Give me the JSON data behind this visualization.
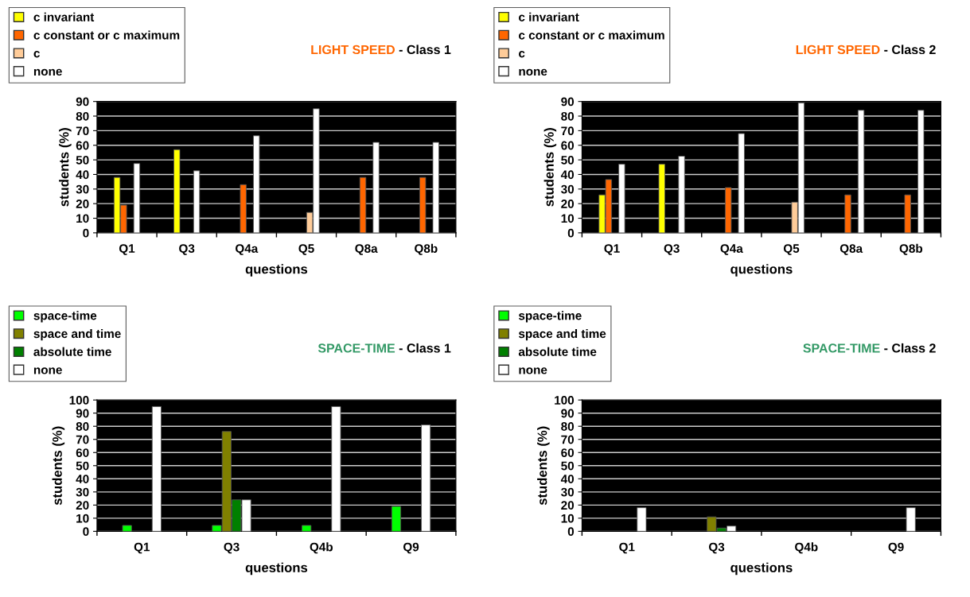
{
  "chart_data": [
    {
      "type": "bar",
      "title": "LIGHT SPEED",
      "subtitle": "- Class 1",
      "xlabel": "questions",
      "ylabel": "students (%)",
      "categories": [
        "Q1",
        "Q3",
        "Q4a",
        "Q5",
        "Q8a",
        "Q8b"
      ],
      "ylim": [
        0,
        90
      ],
      "yticks": [
        0,
        10,
        20,
        30,
        40,
        50,
        60,
        70,
        80,
        90
      ],
      "grid": "y",
      "legend": "top left",
      "series": [
        {
          "name": "c invariant",
          "color": "#ffff00",
          "values": [
            38,
            57,
            null,
            null,
            null,
            null
          ]
        },
        {
          "name": "c constant or c maximum",
          "color": "#ff6600",
          "values": [
            19,
            null,
            33,
            null,
            38,
            38
          ]
        },
        {
          "name": "c",
          "color": "#ffcc99",
          "values": [
            null,
            null,
            null,
            14,
            null,
            null
          ]
        },
        {
          "name": "none",
          "color": "#ffffff",
          "values": [
            47.5,
            42.5,
            66.5,
            85,
            62,
            62
          ]
        }
      ]
    },
    {
      "type": "bar",
      "title": "LIGHT SPEED",
      "subtitle": "- Class 2",
      "xlabel": "questions",
      "ylabel": "students (%)",
      "categories": [
        "Q1",
        "Q3",
        "Q4a",
        "Q5",
        "Q8a",
        "Q8b"
      ],
      "ylim": [
        0,
        90
      ],
      "yticks": [
        0,
        10,
        20,
        30,
        40,
        50,
        60,
        70,
        80,
        90
      ],
      "grid": "y",
      "legend": "top left",
      "series": [
        {
          "name": "c invariant",
          "color": "#ffff00",
          "values": [
            26,
            47,
            null,
            null,
            null,
            null
          ]
        },
        {
          "name": "c constant or c maximum",
          "color": "#ff6600",
          "values": [
            36.5,
            null,
            31,
            null,
            26,
            26
          ]
        },
        {
          "name": "c",
          "color": "#ffcc99",
          "values": [
            null,
            null,
            null,
            21,
            null,
            null
          ]
        },
        {
          "name": "none",
          "color": "#ffffff",
          "values": [
            47,
            52.5,
            68,
            89,
            84,
            84
          ]
        }
      ]
    },
    {
      "type": "bar",
      "title": "SPACE-TIME",
      "subtitle": "- Class 1",
      "xlabel": "questions",
      "ylabel": "students (%)",
      "categories": [
        "Q1",
        "Q3",
        "Q4b",
        "Q9"
      ],
      "ylim": [
        0,
        100
      ],
      "yticks": [
        0,
        10,
        20,
        30,
        40,
        50,
        60,
        70,
        80,
        90,
        100
      ],
      "grid": "y",
      "legend": "top left",
      "series": [
        {
          "name": "space-time",
          "color": "#00ff00",
          "values": [
            4.5,
            4.5,
            4.5,
            19
          ]
        },
        {
          "name": "space and time",
          "color": "#808000",
          "values": [
            null,
            76,
            null,
            null
          ]
        },
        {
          "name": "absolute time",
          "color": "#008000",
          "values": [
            null,
            24,
            null,
            null
          ]
        },
        {
          "name": "none",
          "color": "#ffffff",
          "values": [
            95,
            24,
            95,
            81
          ]
        }
      ]
    },
    {
      "type": "bar",
      "title": "SPACE-TIME",
      "subtitle": "- Class 2",
      "xlabel": "questions",
      "ylabel": "students (%)",
      "categories": [
        "Q1",
        "Q3",
        "Q4b",
        "Q9"
      ],
      "ylim": [
        0,
        100
      ],
      "yticks": [
        0,
        10,
        20,
        30,
        40,
        50,
        60,
        70,
        80,
        90,
        100
      ],
      "grid": "y",
      "legend": "top left",
      "series": [
        {
          "name": "space-time",
          "color": "#00ff00",
          "values": [
            null,
            null,
            null,
            null
          ]
        },
        {
          "name": "space and time",
          "color": "#808000",
          "values": [
            null,
            11,
            null,
            null
          ]
        },
        {
          "name": "absolute time",
          "color": "#008000",
          "values": [
            null,
            2.5,
            null,
            null
          ]
        },
        {
          "name": "none",
          "color": "#ffffff",
          "values": [
            18,
            4,
            null,
            18
          ]
        }
      ]
    }
  ]
}
